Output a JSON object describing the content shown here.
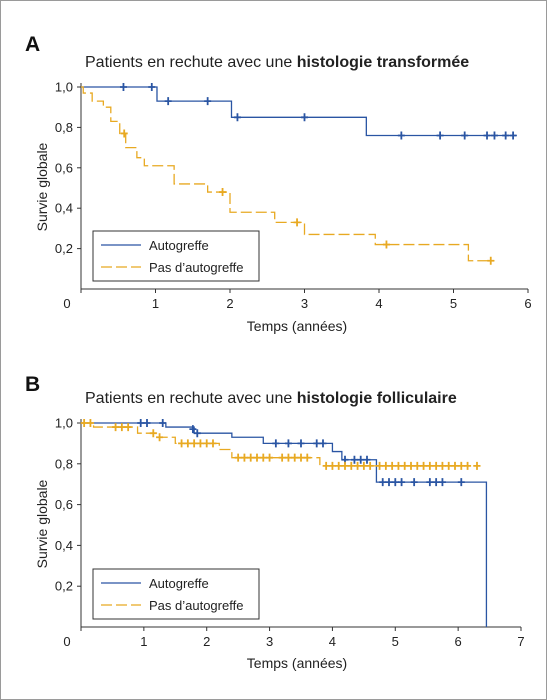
{
  "figure": {
    "border_color": "#9a9a9a"
  },
  "colors": {
    "autogreffe": "#2a55a3",
    "pas_autogreffe": "#e8a922",
    "axis": "#333333",
    "text": "#222222"
  },
  "chart_data": [
    {
      "panel_label": "A",
      "type": "line",
      "subtype": "kaplan-meier",
      "title_prefix": "Patients en rechute avec une ",
      "title_bold": "histologie transformée",
      "xlabel": "Temps (années)",
      "ylabel": "Survie globale",
      "xlim": [
        0,
        6
      ],
      "ylim": [
        0,
        1.0
      ],
      "xticks": [
        0,
        1,
        2,
        3,
        4,
        5,
        6
      ],
      "xtick_labels": [
        "",
        "1",
        "2",
        "3",
        "4",
        "5",
        "6"
      ],
      "origin_label": "0",
      "yticks": [
        0.2,
        0.4,
        0.6,
        0.8,
        1.0
      ],
      "ytick_labels": [
        "0,2",
        "0,4",
        "0,6",
        "0,8",
        "1,0"
      ],
      "legend_position": "bottom-left",
      "series": [
        {
          "name": "Autogreffe",
          "color": "#2a55a3",
          "dash": false,
          "steps": [
            [
              0,
              1.0
            ],
            [
              1.02,
              0.93
            ],
            [
              2.02,
              0.85
            ],
            [
              3.83,
              0.76
            ],
            [
              5.85,
              0.76
            ]
          ],
          "censored": [
            [
              0.57,
              1.0
            ],
            [
              0.95,
              1.0
            ],
            [
              1.17,
              0.93
            ],
            [
              1.7,
              0.93
            ],
            [
              2.1,
              0.85
            ],
            [
              3.0,
              0.85
            ],
            [
              4.3,
              0.76
            ],
            [
              4.82,
              0.76
            ],
            [
              5.15,
              0.76
            ],
            [
              5.45,
              0.76
            ],
            [
              5.55,
              0.76
            ],
            [
              5.7,
              0.76
            ],
            [
              5.8,
              0.76
            ]
          ]
        },
        {
          "name": "Pas d’autogreffe",
          "color": "#e8a922",
          "dash": true,
          "steps": [
            [
              0,
              1.0
            ],
            [
              0.03,
              0.97
            ],
            [
              0.15,
              0.93
            ],
            [
              0.3,
              0.9
            ],
            [
              0.4,
              0.83
            ],
            [
              0.52,
              0.77
            ],
            [
              0.6,
              0.7
            ],
            [
              0.75,
              0.65
            ],
            [
              0.85,
              0.61
            ],
            [
              1.25,
              0.52
            ],
            [
              1.7,
              0.48
            ],
            [
              2.0,
              0.38
            ],
            [
              2.6,
              0.33
            ],
            [
              3.0,
              0.27
            ],
            [
              3.95,
              0.22
            ],
            [
              5.2,
              0.14
            ],
            [
              5.55,
              0.14
            ]
          ],
          "censored": [
            [
              0.58,
              0.77
            ],
            [
              1.9,
              0.48
            ],
            [
              2.9,
              0.33
            ],
            [
              4.1,
              0.22
            ],
            [
              5.5,
              0.14
            ]
          ]
        }
      ]
    },
    {
      "panel_label": "B",
      "type": "line",
      "subtype": "kaplan-meier",
      "title_prefix": "Patients en rechute avec une ",
      "title_bold": "histologie folliculaire",
      "xlabel": "Temps (années)",
      "ylabel": "Survie globale",
      "xlim": [
        0,
        7
      ],
      "ylim": [
        0,
        1.0
      ],
      "xticks": [
        0,
        1,
        2,
        3,
        4,
        5,
        6,
        7
      ],
      "xtick_labels": [
        "",
        "1",
        "2",
        "3",
        "4",
        "5",
        "6",
        "7"
      ],
      "origin_label": "0",
      "yticks": [
        0.2,
        0.4,
        0.6,
        0.8,
        1.0
      ],
      "ytick_labels": [
        "0,2",
        "0,4",
        "0,6",
        "0,8",
        "1,0"
      ],
      "legend_position": "bottom-left",
      "series": [
        {
          "name": "Autogreffe",
          "color": "#2a55a3",
          "dash": false,
          "steps": [
            [
              0,
              1.0
            ],
            [
              1.35,
              0.98
            ],
            [
              1.8,
              0.95
            ],
            [
              2.4,
              0.93
            ],
            [
              2.9,
              0.9
            ],
            [
              4.0,
              0.86
            ],
            [
              4.15,
              0.82
            ],
            [
              4.7,
              0.71
            ],
            [
              6.45,
              0.71
            ],
            [
              6.45,
              0.0
            ]
          ],
          "censored": [
            [
              0.95,
              1.0
            ],
            [
              1.05,
              1.0
            ],
            [
              1.3,
              1.0
            ],
            [
              1.78,
              0.97
            ],
            [
              1.85,
              0.95
            ],
            [
              3.1,
              0.9
            ],
            [
              3.3,
              0.9
            ],
            [
              3.5,
              0.9
            ],
            [
              3.75,
              0.9
            ],
            [
              3.85,
              0.9
            ],
            [
              4.2,
              0.82
            ],
            [
              4.35,
              0.82
            ],
            [
              4.45,
              0.82
            ],
            [
              4.55,
              0.82
            ],
            [
              4.8,
              0.71
            ],
            [
              4.9,
              0.71
            ],
            [
              5.0,
              0.71
            ],
            [
              5.1,
              0.71
            ],
            [
              5.3,
              0.71
            ],
            [
              5.55,
              0.71
            ],
            [
              5.65,
              0.71
            ],
            [
              5.75,
              0.71
            ],
            [
              6.05,
              0.71
            ]
          ]
        },
        {
          "name": "Pas d’autogreffe",
          "color": "#e8a922",
          "dash": true,
          "steps": [
            [
              0,
              1.0
            ],
            [
              0.2,
              0.98
            ],
            [
              0.9,
              0.95
            ],
            [
              1.2,
              0.93
            ],
            [
              1.5,
              0.9
            ],
            [
              2.2,
              0.87
            ],
            [
              2.4,
              0.83
            ],
            [
              3.8,
              0.79
            ],
            [
              6.35,
              0.79
            ]
          ],
          "censored": [
            [
              0.05,
              1.0
            ],
            [
              0.15,
              1.0
            ],
            [
              0.55,
              0.98
            ],
            [
              0.65,
              0.98
            ],
            [
              0.75,
              0.98
            ],
            [
              1.15,
              0.95
            ],
            [
              1.25,
              0.93
            ],
            [
              1.6,
              0.9
            ],
            [
              1.7,
              0.9
            ],
            [
              1.8,
              0.9
            ],
            [
              1.9,
              0.9
            ],
            [
              2.0,
              0.9
            ],
            [
              2.1,
              0.9
            ],
            [
              2.5,
              0.83
            ],
            [
              2.6,
              0.83
            ],
            [
              2.7,
              0.83
            ],
            [
              2.8,
              0.83
            ],
            [
              2.9,
              0.83
            ],
            [
              3.0,
              0.83
            ],
            [
              3.2,
              0.83
            ],
            [
              3.3,
              0.83
            ],
            [
              3.4,
              0.83
            ],
            [
              3.5,
              0.83
            ],
            [
              3.6,
              0.83
            ],
            [
              3.9,
              0.79
            ],
            [
              4.0,
              0.79
            ],
            [
              4.1,
              0.79
            ],
            [
              4.2,
              0.79
            ],
            [
              4.3,
              0.79
            ],
            [
              4.4,
              0.79
            ],
            [
              4.5,
              0.79
            ],
            [
              4.6,
              0.79
            ],
            [
              4.75,
              0.79
            ],
            [
              4.85,
              0.79
            ],
            [
              4.95,
              0.79
            ],
            [
              5.05,
              0.79
            ],
            [
              5.15,
              0.79
            ],
            [
              5.25,
              0.79
            ],
            [
              5.35,
              0.79
            ],
            [
              5.45,
              0.79
            ],
            [
              5.55,
              0.79
            ],
            [
              5.65,
              0.79
            ],
            [
              5.75,
              0.79
            ],
            [
              5.85,
              0.79
            ],
            [
              5.95,
              0.79
            ],
            [
              6.05,
              0.79
            ],
            [
              6.15,
              0.79
            ],
            [
              6.3,
              0.79
            ]
          ]
        }
      ]
    }
  ]
}
